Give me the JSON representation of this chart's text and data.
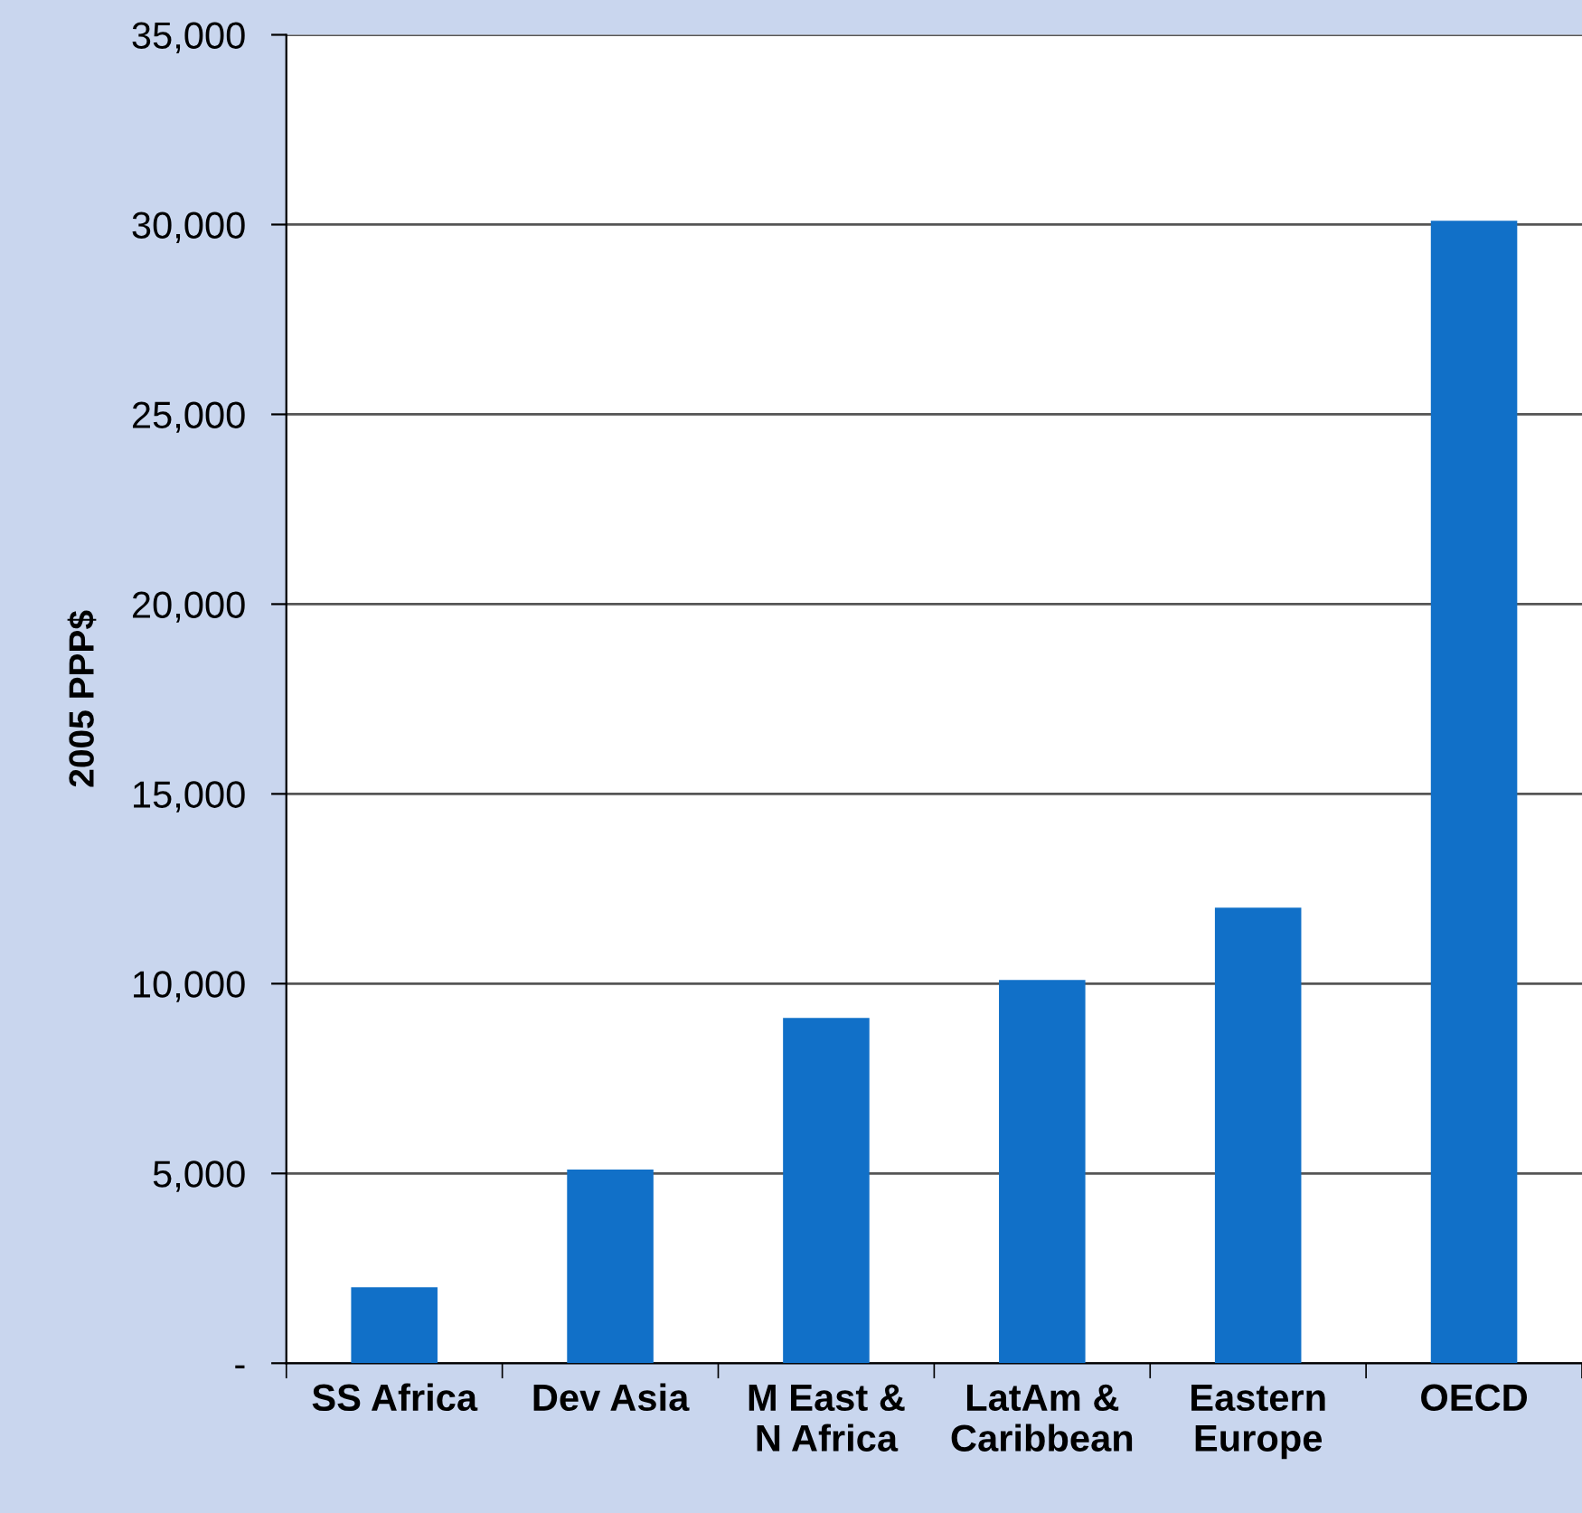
{
  "chart_data": {
    "type": "bar",
    "ylabel": "2005 PPP$",
    "categories": [
      "SS Africa",
      "Dev Asia",
      "M East &\nN Africa",
      "LatAm &\nCaribbean",
      "Eastern\nEurope",
      "OECD"
    ],
    "values": [
      2000,
      5100,
      9100,
      10100,
      12000,
      30100
    ],
    "color": "#1170c8",
    "ylim": [
      0,
      35000
    ],
    "yticks": [
      {
        "value": 0,
        "label": "-"
      },
      {
        "value": 5000,
        "label": "5,000"
      },
      {
        "value": 10000,
        "label": "10,000"
      },
      {
        "value": 15000,
        "label": "15,000"
      },
      {
        "value": 20000,
        "label": "20,000"
      },
      {
        "value": 25000,
        "label": "25,000"
      },
      {
        "value": 30000,
        "label": "30,000"
      },
      {
        "value": 35000,
        "label": "35,000"
      }
    ],
    "grid": "y",
    "legend": false
  }
}
